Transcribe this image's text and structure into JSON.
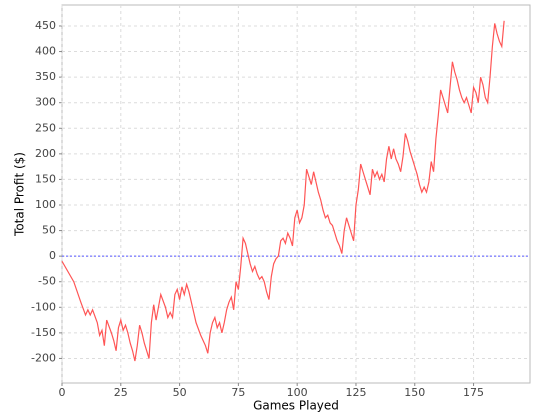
{
  "chart_data": {
    "type": "line",
    "x_label": "Games Played",
    "y_label": "Total Profit ($)",
    "xlim": [
      0,
      199
    ],
    "ylim": [
      -248,
      491
    ],
    "xticks": [
      0,
      25,
      50,
      75,
      100,
      125,
      150,
      175
    ],
    "yticks": [
      -200,
      -150,
      -100,
      -50,
      0,
      50,
      100,
      150,
      200,
      250,
      300,
      350,
      400,
      450
    ],
    "grid": true,
    "zero_line": true,
    "zero_line_color": "#5555ff",
    "x": [
      0,
      5,
      8,
      10,
      11,
      12,
      13,
      15,
      16,
      17,
      18,
      19,
      21,
      22,
      23,
      24,
      25,
      26,
      27,
      28,
      29,
      30,
      31,
      32,
      33,
      34,
      35,
      37,
      38,
      39,
      40,
      41,
      42,
      44,
      45,
      46,
      47,
      48,
      49,
      50,
      51,
      52,
      53,
      54,
      55,
      56,
      57,
      59,
      61,
      62,
      63,
      64,
      65,
      66,
      67,
      68,
      69,
      70,
      71,
      72,
      73,
      74,
      75,
      76,
      77,
      78,
      79,
      80,
      81,
      82,
      83,
      84,
      85,
      86,
      87,
      88,
      89,
      90,
      91,
      92,
      93,
      94,
      95,
      96,
      97,
      98,
      99,
      100,
      101,
      102,
      103,
      104,
      105,
      106,
      107,
      108,
      109,
      110,
      111,
      112,
      113,
      114,
      115,
      116,
      117,
      118,
      119,
      120,
      121,
      122,
      123,
      124,
      125,
      126,
      127,
      128,
      129,
      130,
      131,
      132,
      133,
      134,
      135,
      136,
      137,
      138,
      139,
      140,
      141,
      142,
      143,
      144,
      145,
      146,
      147,
      148,
      149,
      150,
      151,
      152,
      153,
      154,
      155,
      156,
      157,
      158,
      159,
      160,
      161,
      162,
      163,
      164,
      165,
      166,
      167,
      168,
      169,
      170,
      171,
      172,
      173,
      174,
      175,
      176,
      177,
      178,
      179,
      180,
      181,
      182,
      183,
      184,
      185,
      186,
      187,
      188
    ],
    "series": [
      {
        "name": "Total Profit",
        "color": "#ff5555",
        "values": [
          -10,
          -50,
          -90,
          -115,
          -105,
          -115,
          -105,
          -130,
          -155,
          -145,
          -175,
          -125,
          -150,
          -165,
          -185,
          -140,
          -125,
          -145,
          -135,
          -150,
          -170,
          -185,
          -205,
          -175,
          -135,
          -150,
          -170,
          -200,
          -130,
          -95,
          -125,
          -100,
          -75,
          -100,
          -120,
          -110,
          -120,
          -75,
          -65,
          -85,
          -60,
          -75,
          -55,
          -70,
          -90,
          -110,
          -130,
          -155,
          -175,
          -190,
          -150,
          -130,
          -120,
          -140,
          -130,
          -150,
          -130,
          -105,
          -90,
          -80,
          -105,
          -50,
          -65,
          -20,
          35,
          25,
          5,
          -15,
          -30,
          -20,
          -35,
          -45,
          -40,
          -50,
          -70,
          -85,
          -40,
          -15,
          -5,
          0,
          30,
          35,
          25,
          45,
          35,
          20,
          75,
          90,
          65,
          75,
          100,
          170,
          155,
          140,
          165,
          145,
          125,
          110,
          90,
          75,
          80,
          65,
          60,
          45,
          30,
          20,
          5,
          50,
          75,
          60,
          45,
          30,
          100,
          130,
          180,
          165,
          150,
          135,
          120,
          170,
          155,
          165,
          150,
          160,
          145,
          190,
          215,
          190,
          210,
          190,
          180,
          165,
          195,
          240,
          225,
          205,
          190,
          175,
          160,
          140,
          125,
          135,
          125,
          145,
          185,
          165,
          230,
          275,
          325,
          310,
          295,
          280,
          330,
          380,
          360,
          345,
          325,
          310,
          300,
          310,
          295,
          280,
          330,
          320,
          300,
          350,
          335,
          310,
          300,
          350,
          410,
          455,
          435,
          420,
          410,
          460
        ]
      }
    ]
  }
}
